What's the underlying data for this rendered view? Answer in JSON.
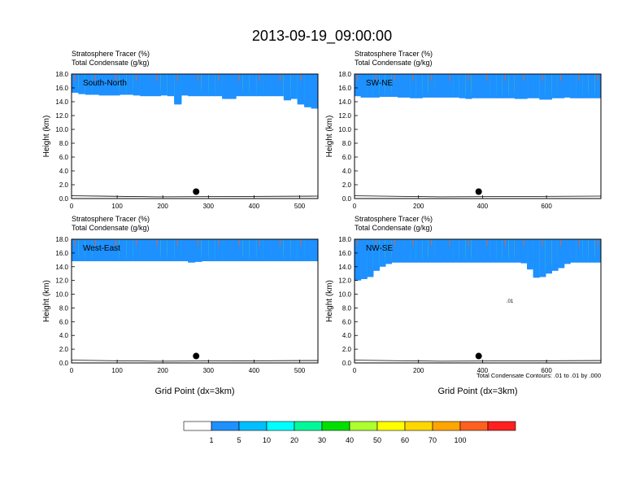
{
  "figure": {
    "title": "2013-09-19_09:00:00",
    "contour_note": "Total Condensate Contours: .01 to .01 by .000",
    "contour_label": ".01",
    "colors": [
      "#ffffff",
      "#1e90ff",
      "#00bfff",
      "#00ffff",
      "#00fa9a",
      "#00e000",
      "#adff2f",
      "#ffff00",
      "#ffd700",
      "#ffa500",
      "#ff6020",
      "#ff2020"
    ],
    "outline_color": "#000000"
  },
  "colorbar": {
    "labels": [
      "1",
      "5",
      "10",
      "20",
      "30",
      "40",
      "50",
      "60",
      "70",
      "100"
    ]
  },
  "chart_data": [
    {
      "type": "heatmap",
      "panel": "South-North",
      "label": "South-North",
      "subtitle_1": "Stratosphere Tracer   (%)",
      "subtitle_2": "Total Condensate   (g/kg)",
      "ylabel": "Height (km)",
      "xlabel": "",
      "xlim": [
        0,
        540
      ],
      "ylim": [
        0,
        18
      ],
      "xticks": [
        "0",
        "100",
        "200",
        "300",
        "400",
        "500"
      ],
      "yticks": [
        "0.0",
        "2.0",
        "4.0",
        "6.0",
        "8.0",
        "10.0",
        "12.0",
        "14.0",
        "16.0",
        "18.0"
      ],
      "marker": {
        "x": 273,
        "y": 1.0
      },
      "tropopause_km": [
        15.3,
        15.1,
        15.0,
        15.0,
        14.9,
        14.9,
        14.9,
        15.0,
        15.0,
        14.9,
        14.8,
        14.8,
        14.8,
        14.9,
        14.8,
        13.6,
        14.9,
        14.8,
        14.8,
        14.8,
        14.8,
        14.8,
        14.4,
        14.4,
        14.8,
        14.8,
        14.8,
        14.8,
        14.8,
        14.8,
        14.8,
        14.2,
        14.4,
        13.6,
        13.2,
        13.0
      ]
    },
    {
      "type": "heatmap",
      "panel": "SW-NE",
      "label": "SW-NE",
      "subtitle_1": "Stratosphere Tracer   (%)",
      "subtitle_2": "Total Condensate   (g/kg)",
      "ylabel": "Height (km)",
      "xlabel": "",
      "xlim": [
        0,
        770
      ],
      "ylim": [
        0,
        18
      ],
      "xticks": [
        "0",
        "200",
        "400",
        "600"
      ],
      "yticks": [
        "0.0",
        "2.0",
        "4.0",
        "6.0",
        "8.0",
        "10.0",
        "12.0",
        "14.0",
        "16.0",
        "18.0"
      ],
      "marker": {
        "x": 388,
        "y": 1.0
      },
      "tropopause_km": [
        14.8,
        14.6,
        14.6,
        14.6,
        14.7,
        14.7,
        14.7,
        14.6,
        14.6,
        14.5,
        14.5,
        14.6,
        14.6,
        14.6,
        14.6,
        14.6,
        14.6,
        14.5,
        14.4,
        14.5,
        14.5,
        14.5,
        14.5,
        14.5,
        14.5,
        14.5,
        14.4,
        14.4,
        14.5,
        14.5,
        14.3,
        14.3,
        14.5,
        14.5,
        14.6,
        14.5,
        14.5,
        14.5,
        14.5,
        14.5
      ]
    },
    {
      "type": "heatmap",
      "panel": "West-East",
      "label": "West-East",
      "subtitle_1": "Stratosphere Tracer   (%)",
      "subtitle_2": "Total Condensate   (g/kg)",
      "ylabel": "Height (km)",
      "xlabel": "Grid Point (dx=3km)",
      "xlim": [
        0,
        540
      ],
      "ylim": [
        0,
        18
      ],
      "xticks": [
        "0",
        "100",
        "200",
        "300",
        "400",
        "500"
      ],
      "yticks": [
        "0.0",
        "2.0",
        "4.0",
        "6.0",
        "8.0",
        "10.0",
        "12.0",
        "14.0",
        "16.0",
        "18.0"
      ],
      "marker": {
        "x": 273,
        "y": 1.0
      },
      "tropopause_km": [
        14.8,
        14.8,
        14.8,
        14.8,
        14.8,
        14.8,
        14.8,
        14.8,
        14.8,
        14.8,
        14.8,
        14.8,
        14.8,
        14.8,
        14.8,
        14.8,
        14.8,
        14.6,
        14.7,
        14.8,
        14.8,
        14.8,
        14.8,
        14.8,
        14.8,
        14.8,
        14.8,
        14.8,
        14.8,
        14.8,
        14.8,
        14.8,
        14.8,
        14.8,
        14.8,
        14.8
      ]
    },
    {
      "type": "heatmap",
      "panel": "NW-SE",
      "label": "NW-SE",
      "subtitle_1": "Stratosphere Tracer   (%)",
      "subtitle_2": "Total Condensate   (g/kg)",
      "ylabel": "Height (km)",
      "xlabel": "Grid Point (dx=3km)",
      "xlim": [
        0,
        770
      ],
      "ylim": [
        0,
        18
      ],
      "xticks": [
        "0",
        "200",
        "400",
        "600"
      ],
      "yticks": [
        "0.0",
        "2.0",
        "4.0",
        "6.0",
        "8.0",
        "10.0",
        "12.0",
        "14.0",
        "16.0",
        "18.0"
      ],
      "marker": {
        "x": 388,
        "y": 1.0
      },
      "tropopause_km": [
        12.0,
        12.2,
        12.5,
        13.4,
        14.0,
        14.4,
        14.6,
        14.6,
        14.6,
        14.6,
        14.6,
        14.6,
        14.6,
        14.6,
        14.6,
        14.6,
        14.6,
        14.6,
        14.6,
        14.6,
        14.6,
        14.6,
        14.6,
        14.6,
        14.6,
        14.6,
        14.6,
        14.5,
        13.6,
        12.4,
        12.5,
        13.0,
        13.4,
        13.8,
        14.4,
        14.6,
        14.6,
        14.6,
        14.6,
        14.6
      ]
    }
  ]
}
